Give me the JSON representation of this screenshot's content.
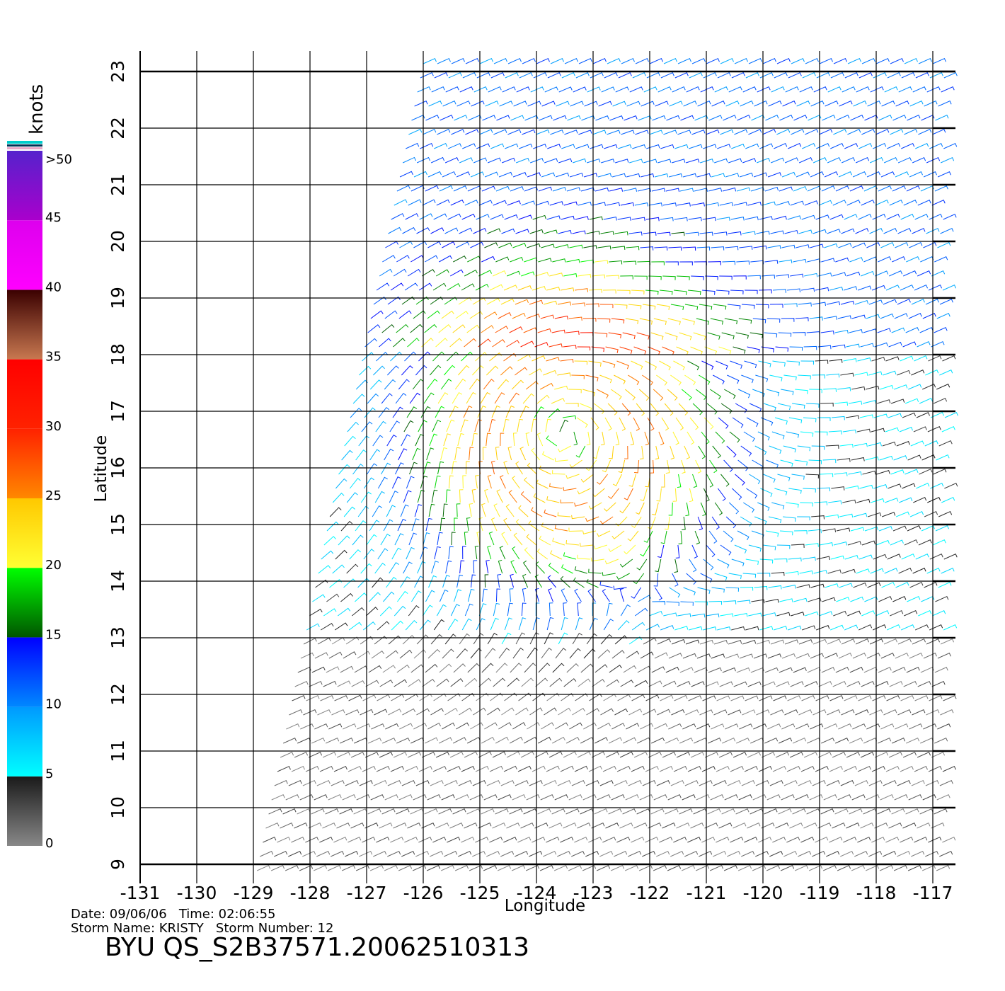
{
  "map": {
    "axes": {
      "xlabel": "Longitude",
      "ylabel": "Latitude",
      "xlim": [
        -131,
        -116.6
      ],
      "ylim": [
        9,
        23
      ],
      "xticks": [
        -131,
        -130,
        -129,
        -128,
        -127,
        -126,
        -125,
        -124,
        -123,
        -122,
        -121,
        -120,
        -119,
        -118,
        -117
      ],
      "yticks": [
        9,
        10,
        11,
        12,
        13,
        14,
        15,
        16,
        17,
        18,
        19,
        20,
        21,
        22,
        23
      ],
      "grid": true
    },
    "colorbar": {
      "label": "knots",
      "lim": [
        0,
        50
      ],
      "ticks": [
        0,
        5,
        10,
        15,
        20,
        25,
        30,
        35,
        40,
        45,
        {
          "value": 50,
          "label": ">50"
        }
      ],
      "colors": [
        [
          "#888888",
          "#1a1a1a"
        ],
        [
          "#00ffff",
          "#0099ff"
        ],
        [
          "#0088ff",
          "#0000ff"
        ],
        [
          "#005500",
          "#00ff00"
        ],
        [
          "#ffff33",
          "#ffc800"
        ],
        [
          "#ff8800",
          "#ff2200"
        ],
        [
          "#ff2200",
          "#ff0000"
        ],
        [
          "#c87850",
          "#3a0000"
        ],
        [
          "#ff00ff",
          "#dd00ee"
        ],
        [
          "#aa00cc",
          "#5522cc"
        ]
      ]
    },
    "footer": {
      "date_line": "Date: 09/06/06   Time: 02:06:55",
      "storm_line": "Storm Name: KRISTY   Storm Number: 12",
      "file_id": "BYU QS_S2B37571.20062510313"
    }
  }
}
